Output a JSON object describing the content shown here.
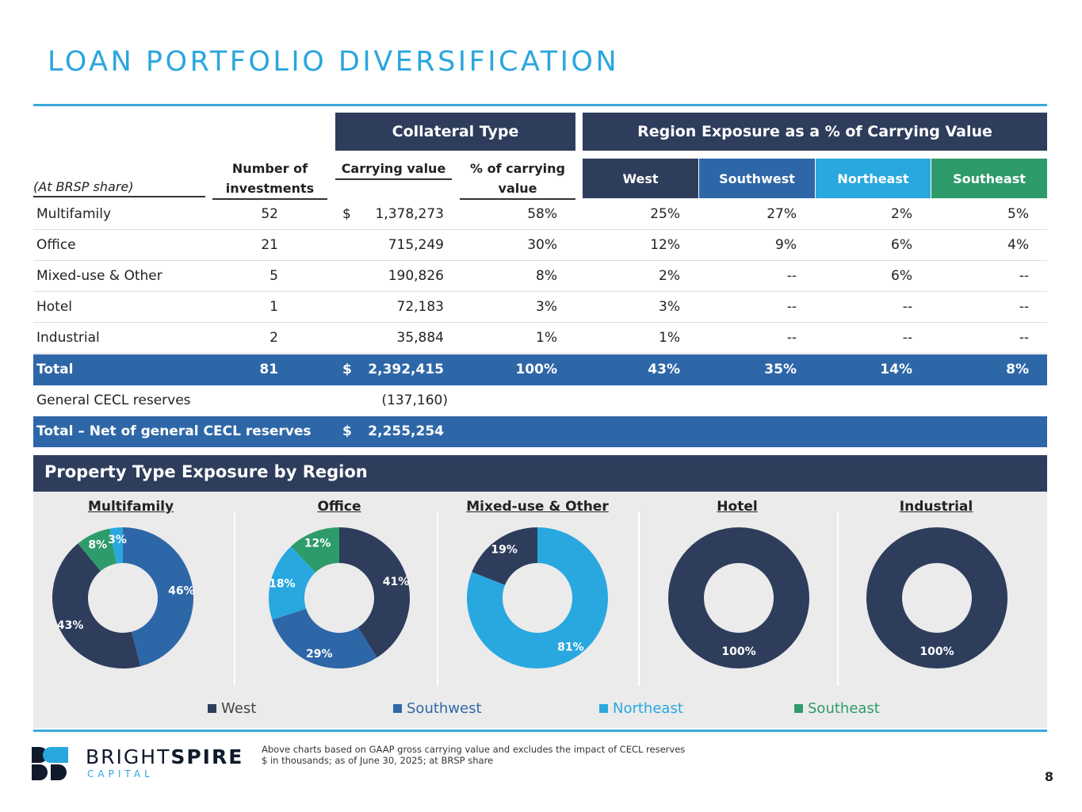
{
  "title": "LOAN PORTFOLIO DIVERSIFICATION",
  "headers": {
    "collateral": "Collateral Type",
    "region": "Region Exposure as a % of Carrying Value",
    "share": "(At BRSP share)",
    "num_inv": "Number of investments",
    "carrying": "Carrying value",
    "pct": "% of carrying value"
  },
  "regions": [
    {
      "name": "West",
      "color": "#2e3d5c"
    },
    {
      "name": "Southwest",
      "color": "#2e67a8"
    },
    {
      "name": "Northeast",
      "color": "#29a8e0"
    },
    {
      "name": "Southeast",
      "color": "#2e9b6a"
    }
  ],
  "rows": [
    {
      "label": "Multifamily",
      "num": "52",
      "dollar": "$",
      "carrying": "1,378,273",
      "pct": "58%",
      "west": "25%",
      "sw": "27%",
      "ne": "2%",
      "se": "5%"
    },
    {
      "label": "Office",
      "num": "21",
      "dollar": "",
      "carrying": "715,249",
      "pct": "30%",
      "west": "12%",
      "sw": "9%",
      "ne": "6%",
      "se": "4%"
    },
    {
      "label": "Mixed-use & Other",
      "num": "5",
      "dollar": "",
      "carrying": "190,826",
      "pct": "8%",
      "west": "2%",
      "sw": "--",
      "ne": "6%",
      "se": "--"
    },
    {
      "label": "Hotel",
      "num": "1",
      "dollar": "",
      "carrying": "72,183",
      "pct": "3%",
      "west": "3%",
      "sw": "--",
      "ne": "--",
      "se": "--"
    },
    {
      "label": "Industrial",
      "num": "2",
      "dollar": "",
      "carrying": "35,884",
      "pct": "1%",
      "west": "1%",
      "sw": "--",
      "ne": "--",
      "se": "--"
    }
  ],
  "total": {
    "label": "Total",
    "num": "81",
    "dollar": "$",
    "carrying": "2,392,415",
    "pct": "100%",
    "west": "43%",
    "sw": "35%",
    "ne": "14%",
    "se": "8%"
  },
  "cecl": {
    "label": "General CECL reserves",
    "carrying": "(137,160)"
  },
  "net": {
    "label": "Total – Net of general CECL reserves",
    "dollar": "$",
    "carrying": "2,255,254"
  },
  "section_title": "Property Type Exposure by Region",
  "chart_data": [
    {
      "type": "pie",
      "title": "Multifamily",
      "categories": [
        "Southwest",
        "West",
        "Southeast",
        "Northeast"
      ],
      "values": [
        46,
        43,
        8,
        3
      ],
      "labels": [
        "46%",
        "43%",
        "8%",
        "3%"
      ]
    },
    {
      "type": "pie",
      "title": "Office",
      "categories": [
        "West",
        "Southwest",
        "Northeast",
        "Southeast"
      ],
      "values": [
        41,
        29,
        18,
        12
      ],
      "labels": [
        "41%",
        "29%",
        "18%",
        "12%"
      ]
    },
    {
      "type": "pie",
      "title": "Mixed-use & Other",
      "categories": [
        "Northeast",
        "West"
      ],
      "values": [
        81,
        19
      ],
      "labels": [
        "81%",
        "19%"
      ]
    },
    {
      "type": "pie",
      "title": "Hotel",
      "categories": [
        "West"
      ],
      "values": [
        100
      ],
      "labels": [
        "100%"
      ]
    },
    {
      "type": "pie",
      "title": "Industrial",
      "categories": [
        "West"
      ],
      "values": [
        100
      ],
      "labels": [
        "100%"
      ]
    }
  ],
  "footer": {
    "note1": "Above charts based on GAAP gross carrying value and excludes the impact of CECL reserves",
    "note2": "$ in thousands; as of June 30, 2025; at BRSP share",
    "logo_text1": "BRIGHT",
    "logo_text2": "SPIRE",
    "logo_text3": "CAPITAL",
    "page": "8"
  }
}
